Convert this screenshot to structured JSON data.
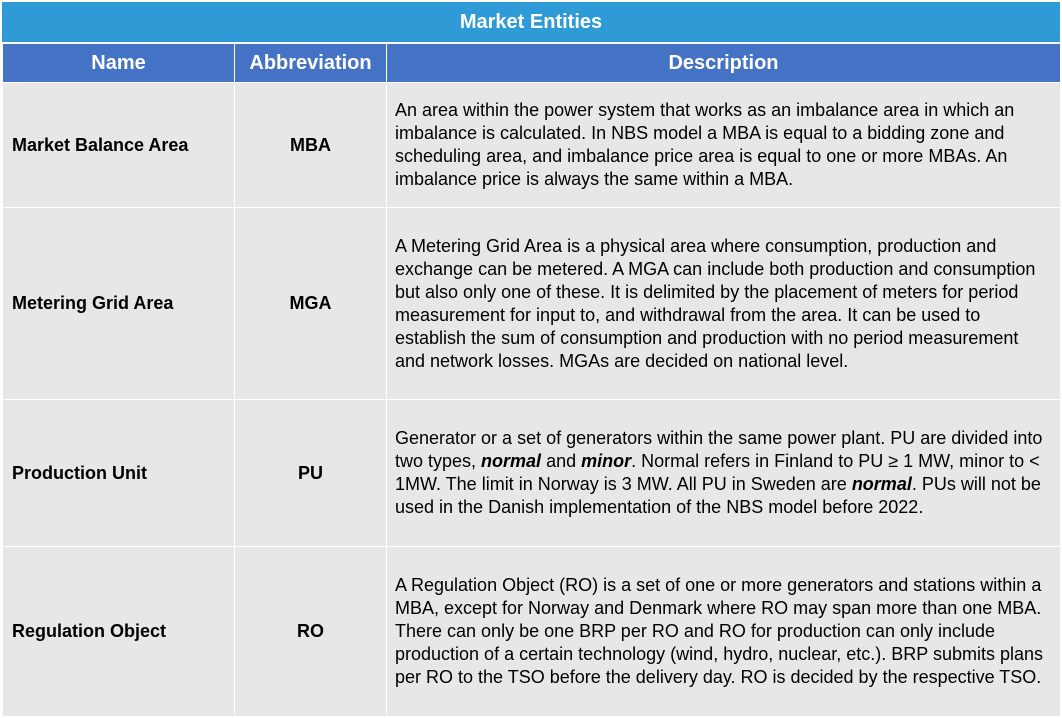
{
  "title": "Market Entities",
  "columns": [
    "Name",
    "Abbreviation",
    "Description"
  ],
  "rows": [
    {
      "name": "Market Balance Area",
      "abbr": "MBA",
      "desc": [
        "An area within the power system that works as an imbalance area in which an imbalance is calculated. In NBS model a MBA is equal to a bidding zone and scheduling area, and imbalance price area is equal to one or more MBAs. An imbalance price is always the same within a MBA."
      ]
    },
    {
      "name": "Metering Grid Area",
      "abbr": "MGA",
      "desc": [
        "A Metering Grid Area is a physical area where consumption, production and exchange can be metered. A MGA can include both production and consumption but also only one of these. It is delimited by the placement of meters for period measurement for input to, and withdrawal from the area. It can be used to establish the sum of consumption and production with no period measurement and network losses. MGAs are decided on national level."
      ]
    },
    {
      "name": "Production Unit",
      "abbr": "PU",
      "desc": [
        "Generator or a set of generators within the same power plant. PU are divided into two types, ",
        "normal",
        " and ",
        "minor",
        ". Normal refers in Finland to PU ≥ 1 MW, minor to < 1MW. The limit in Norway is 3 MW. All PU in Sweden are ",
        "normal",
        ". PUs will not be used in the Danish implementation of the NBS model before 2022."
      ]
    },
    {
      "name": "Regulation Object",
      "abbr": "RO",
      "desc": [
        "A Regulation Object (RO) is a set of one or more generators and stations within a MBA, except for Norway and Denmark where RO may span more than one MBA. There can only be one BRP per RO and RO for production can only include production of a certain technology (wind, hydro, nuclear, etc.). BRP submits plans per RO to the TSO before the delivery day. RO is decided by the respective TSO."
      ]
    }
  ]
}
